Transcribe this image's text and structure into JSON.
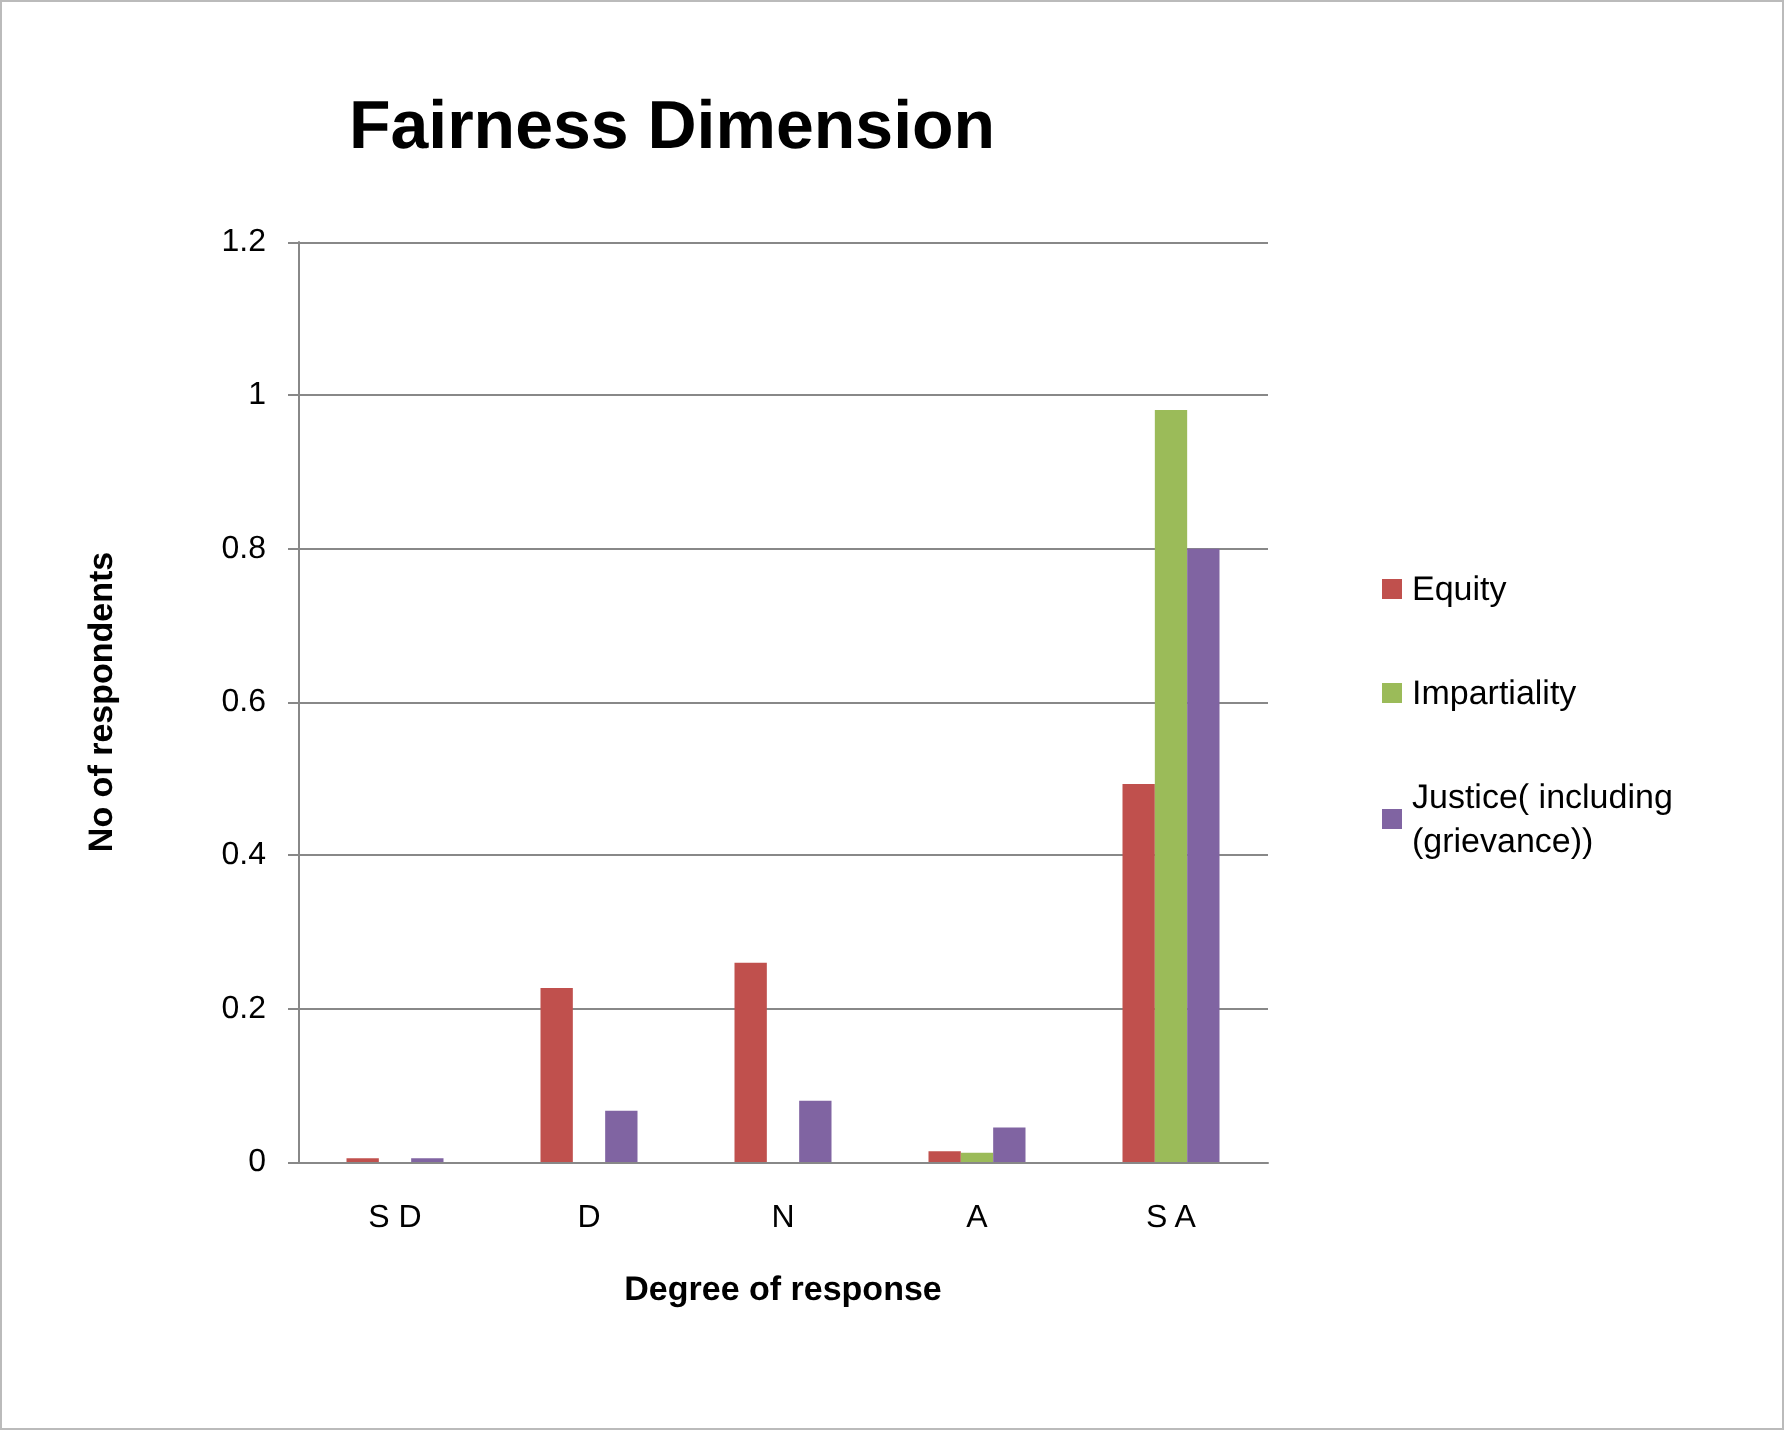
{
  "chart_data": {
    "type": "bar",
    "title": "Fairness Dimension",
    "xlabel": "Degree of response",
    "ylabel": "No of respondents",
    "categories": [
      "S D",
      "D",
      "N",
      "A",
      "S A"
    ],
    "series": [
      {
        "name": "Equity",
        "color": "#c0504d",
        "values": [
          0.005,
          0.227,
          0.26,
          0.014,
          0.493
        ]
      },
      {
        "name": "Impartiality",
        "color": "#9bbb59",
        "values": [
          0,
          0,
          0,
          0.012,
          0.981
        ]
      },
      {
        "name": "Justice( including (grievance))",
        "color": "#8064a2",
        "values": [
          0.005,
          0.067,
          0.08,
          0.045,
          0.8
        ]
      }
    ],
    "ylim": [
      0,
      1.2
    ],
    "yticks": [
      0,
      0.2,
      0.4,
      0.6,
      0.8,
      1,
      1.2
    ],
    "grid": "y",
    "legend": "right"
  }
}
